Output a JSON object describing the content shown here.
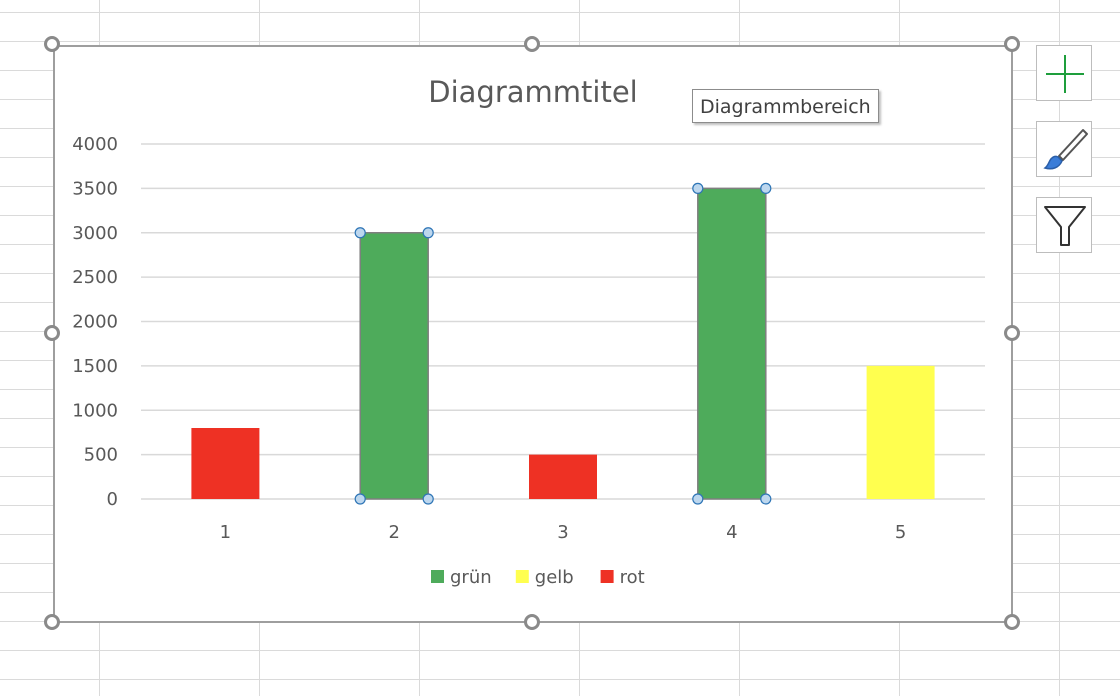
{
  "chart_data": {
    "type": "bar",
    "title": "Diagrammtitel",
    "xlabel": "",
    "ylabel": "",
    "categories": [
      "1",
      "2",
      "3",
      "4",
      "5"
    ],
    "values": [
      800,
      3000,
      500,
      3500,
      1500
    ],
    "bar_colors": [
      "#ee3124",
      "#4eab5b",
      "#ee3124",
      "#4eab5b",
      "#ffff4f"
    ],
    "ylim": [
      0,
      4000
    ],
    "yticks": [
      "0",
      "500",
      "1000",
      "1500",
      "2000",
      "2500",
      "3000",
      "3500",
      "4000"
    ],
    "grid": true,
    "legend_position": "bottom",
    "legend": [
      {
        "label": "grün",
        "color": "#4eab5b"
      },
      {
        "label": "gelb",
        "color": "#ffff4f"
      },
      {
        "label": "rot",
        "color": "#ee3124"
      }
    ],
    "selected_bars": [
      1,
      3
    ]
  },
  "tooltip": "Diagrammbereich",
  "side_buttons": {
    "plus_icon": "plus-icon",
    "brush_icon": "brush-icon",
    "filter_icon": "funnel-icon"
  }
}
